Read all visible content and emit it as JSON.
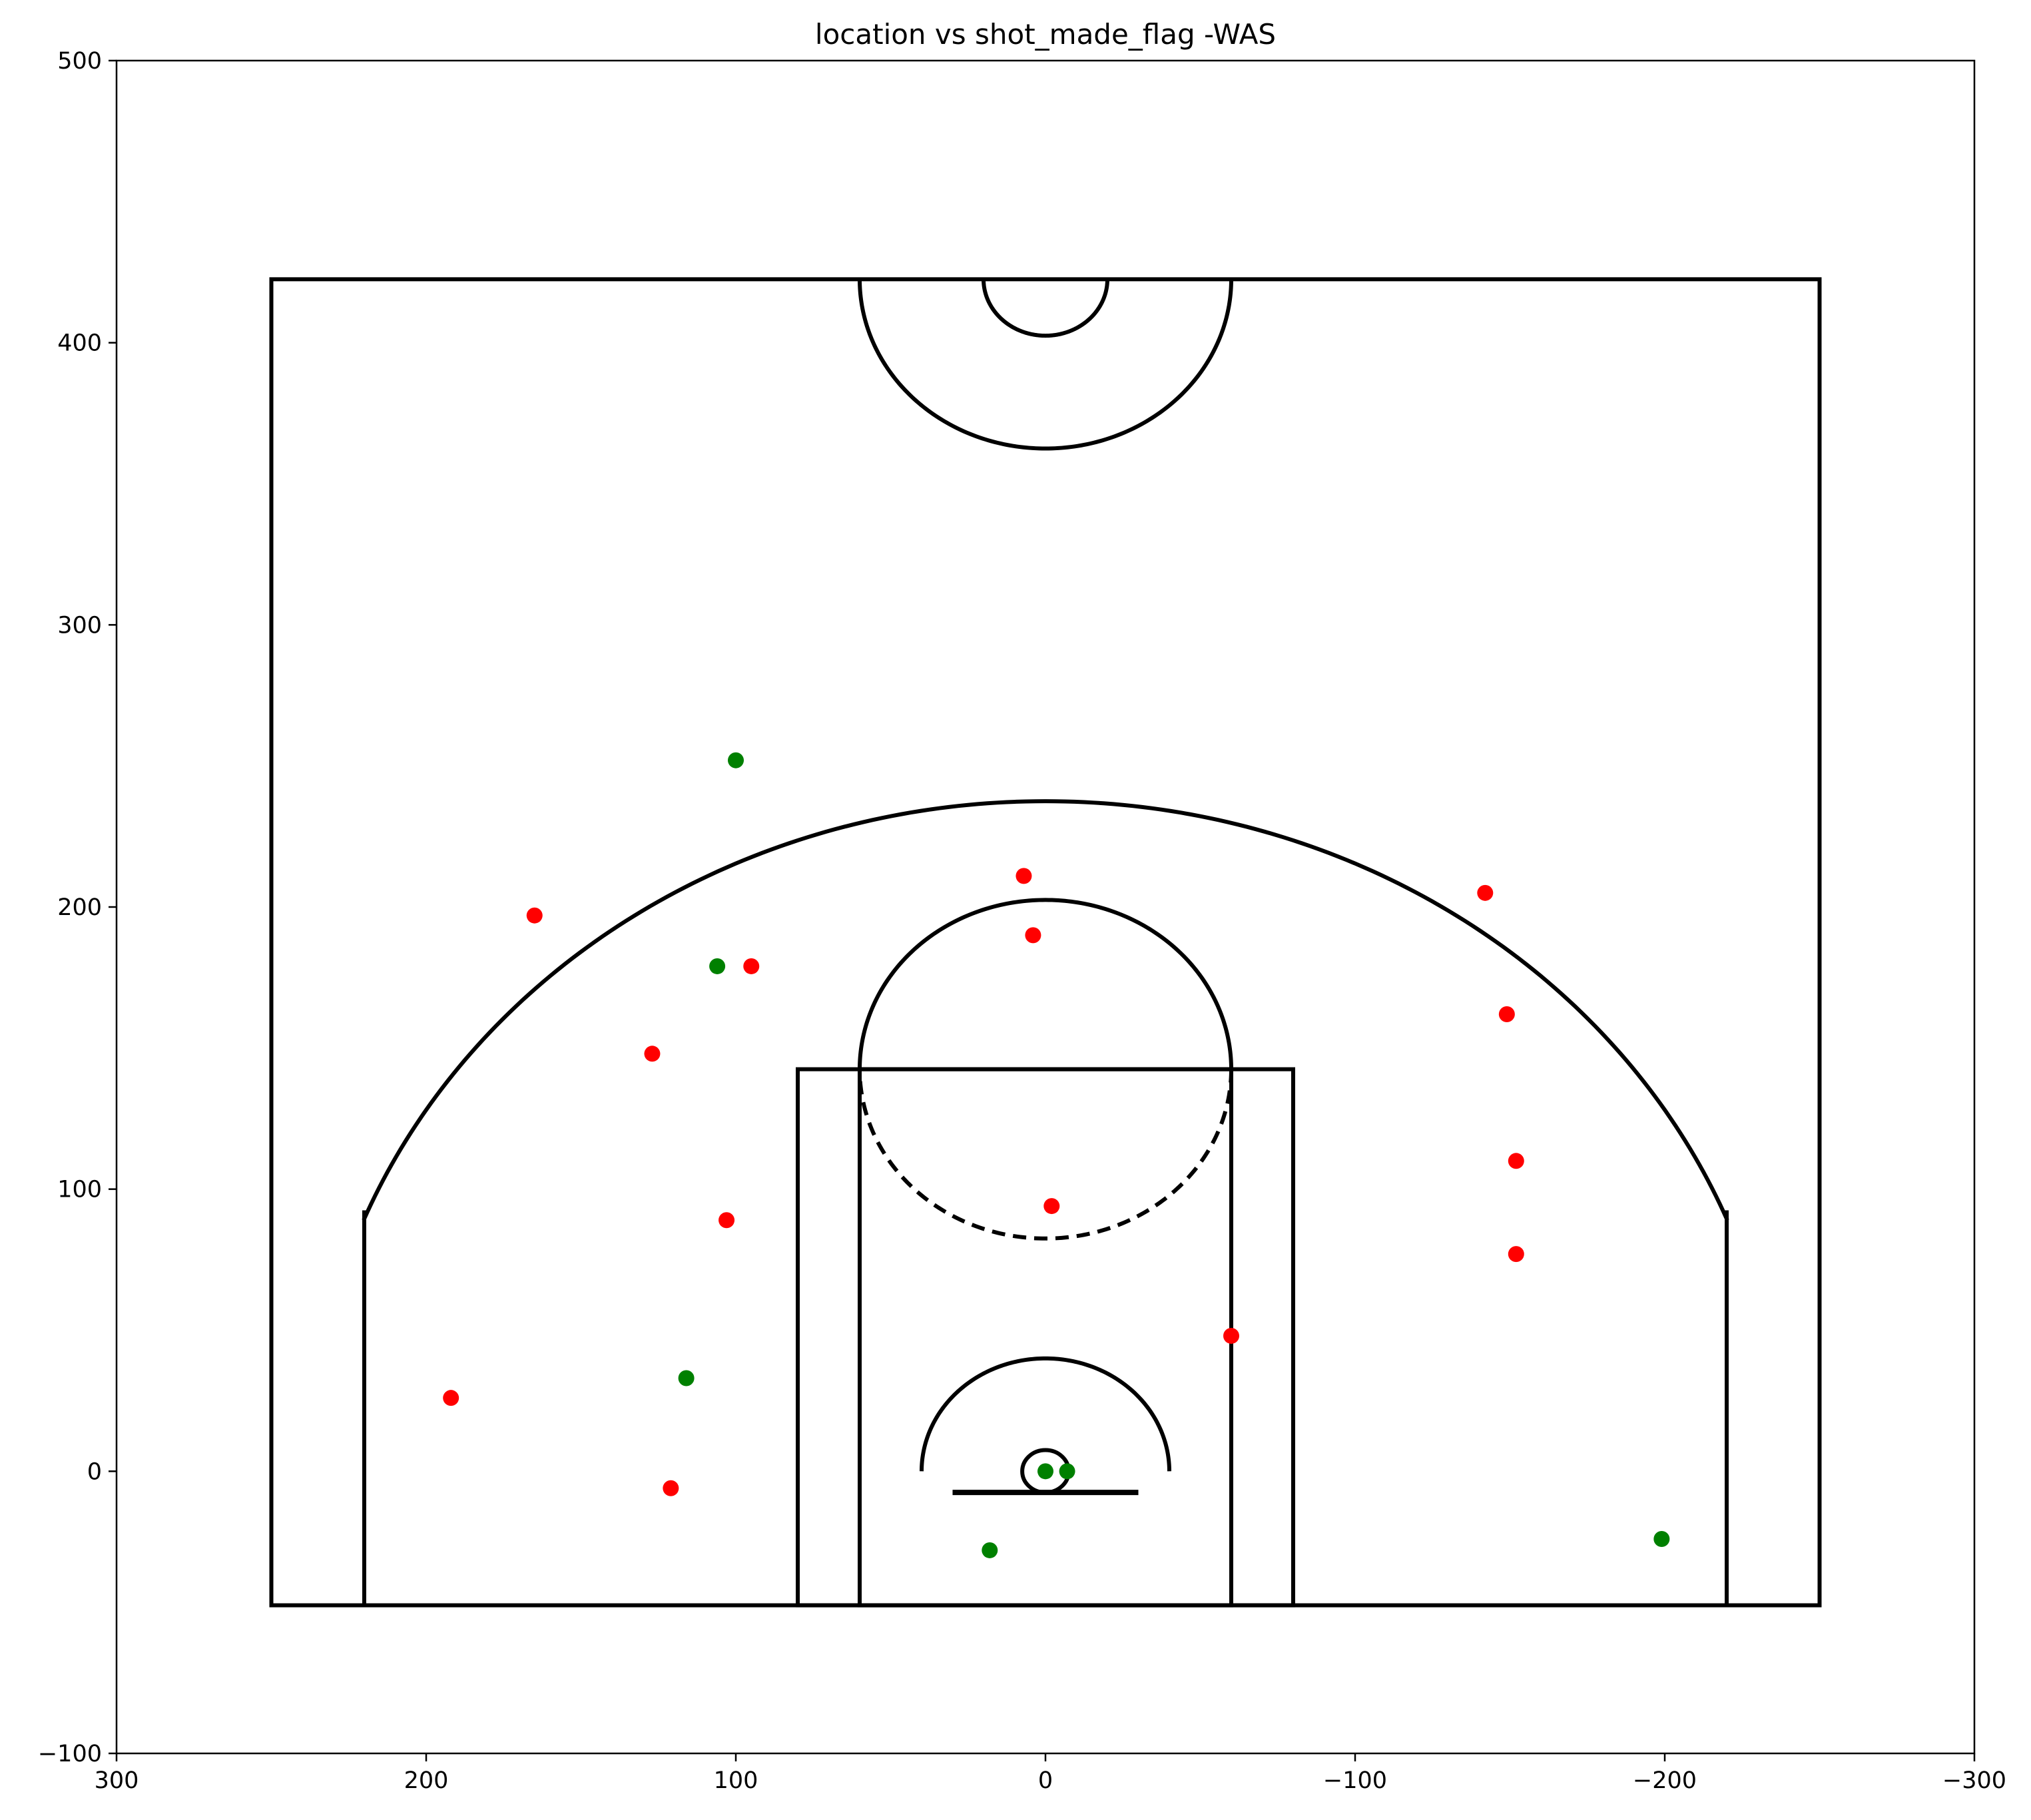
{
  "chart_data": {
    "type": "scatter",
    "title": "location vs shot_made_flag -WAS",
    "xlabel": "",
    "ylabel": "",
    "xlim": [
      300,
      -300
    ],
    "ylim": [
      -100,
      500
    ],
    "x_ticks": [
      300,
      200,
      100,
      0,
      -100,
      -200,
      -300
    ],
    "y_ticks": [
      500,
      400,
      300,
      200,
      100,
      0,
      -100
    ],
    "x_tick_labels": [
      "300",
      "200",
      "100",
      "0",
      "−100",
      "−200",
      "−300"
    ],
    "y_tick_labels": [
      "500",
      "400",
      "300",
      "200",
      "100",
      "0",
      "−100"
    ],
    "grid": false,
    "legend": "none",
    "colors": {
      "made": "#008000",
      "missed": "#ff0000",
      "court_lines": "#000000"
    },
    "series": [
      {
        "flag": 1,
        "color": "#008000",
        "points": [
          [
            100,
            252
          ],
          [
            106,
            179
          ],
          [
            116,
            33
          ],
          [
            0,
            0
          ],
          [
            -7,
            0
          ],
          [
            18,
            -28
          ],
          [
            -199,
            -24
          ]
        ]
      },
      {
        "flag": 0,
        "color": "#ff0000",
        "points": [
          [
            165,
            197
          ],
          [
            127,
            148
          ],
          [
            95,
            179
          ],
          [
            7,
            211
          ],
          [
            4,
            190
          ],
          [
            -142,
            205
          ],
          [
            -149,
            162
          ],
          [
            -152,
            110
          ],
          [
            -152,
            77
          ],
          [
            103,
            89
          ],
          [
            -2,
            94
          ],
          [
            -60,
            48
          ],
          [
            192,
            26
          ],
          [
            121,
            -6
          ]
        ]
      }
    ]
  }
}
